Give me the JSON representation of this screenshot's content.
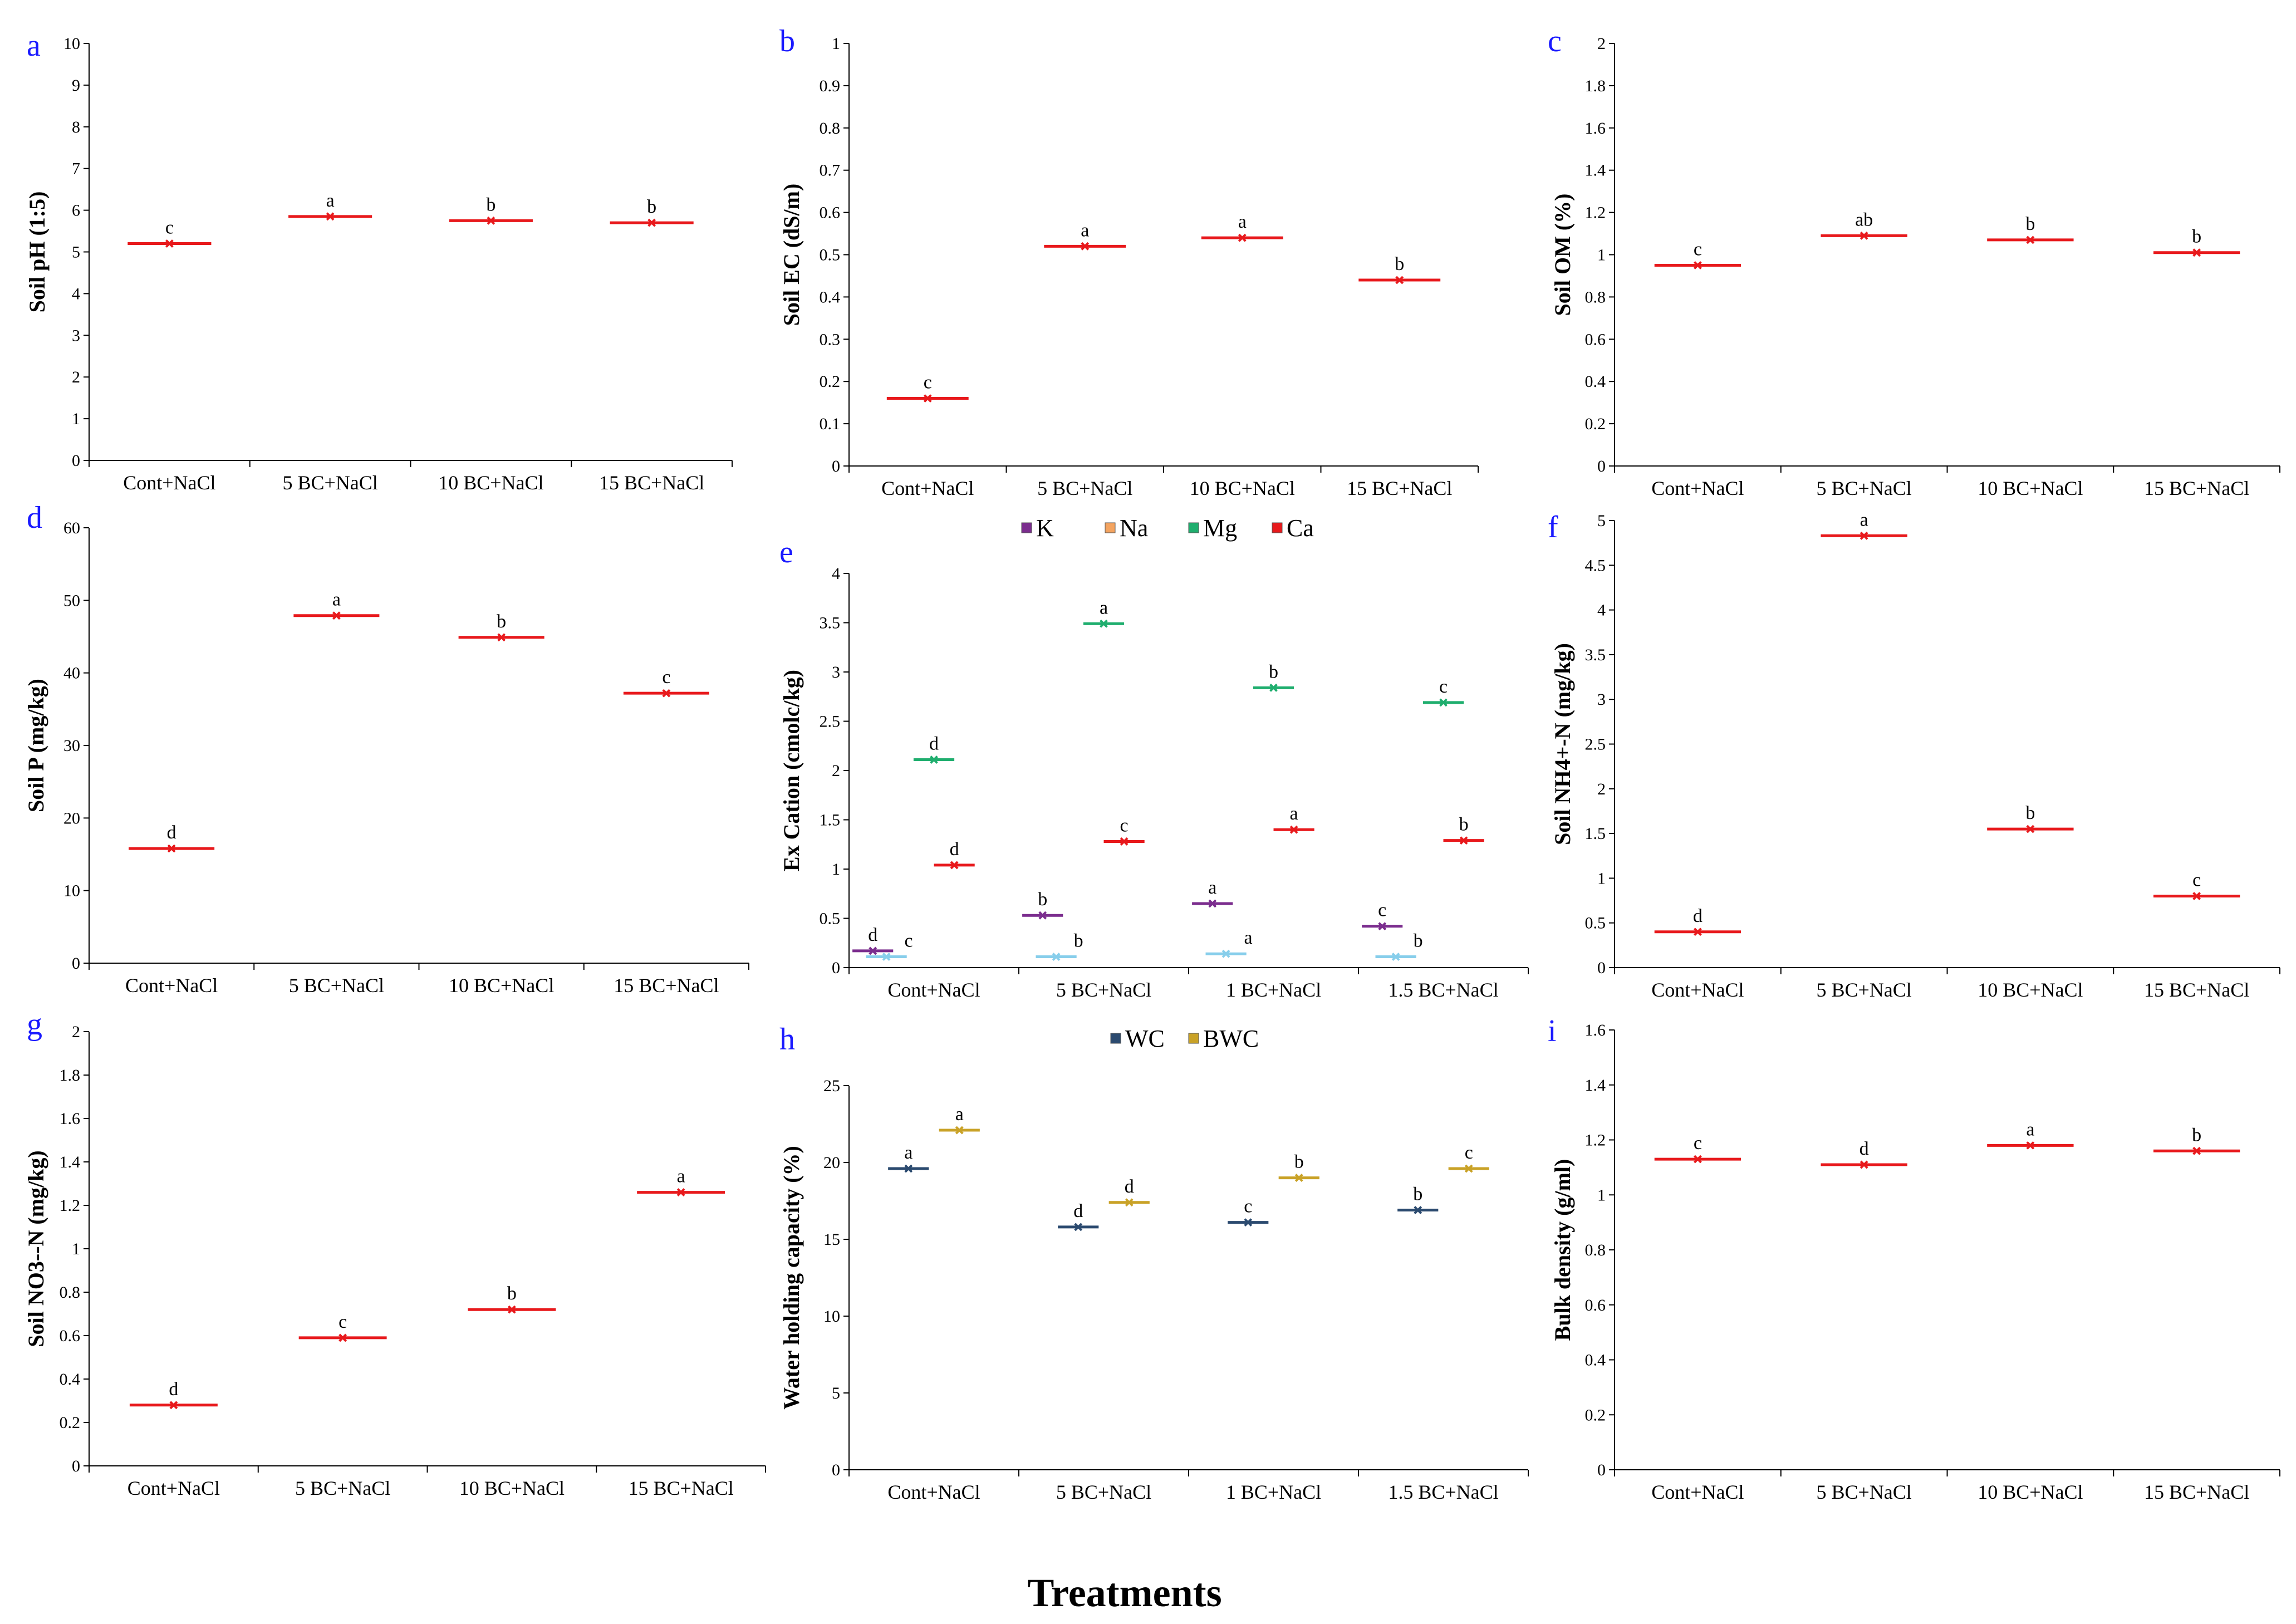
{
  "footer": {
    "xlabel": "Treatments"
  },
  "chart_data": [
    {
      "panel": "a",
      "type": "scatter",
      "ylabel": "Soil pH (1:5)",
      "ylim": [
        0,
        10
      ],
      "yticks": [
        0,
        1,
        2,
        3,
        4,
        5,
        6,
        7,
        8,
        9,
        10
      ],
      "categories": [
        "Cont+NaCl",
        "5 BC+NaCl",
        "10 BC+NaCl",
        "15 BC+NaCl"
      ],
      "series": [
        {
          "color": "#e8191c",
          "values": [
            5.2,
            5.85,
            5.75,
            5.7
          ],
          "labels": [
            "c",
            "a",
            "b",
            "b"
          ]
        }
      ]
    },
    {
      "panel": "b",
      "type": "scatter",
      "ylabel": "Soil EC (dS/m)",
      "ylim": [
        0,
        1
      ],
      "yticks": [
        0,
        0.1,
        0.2,
        0.3,
        0.4,
        0.5,
        0.6,
        0.7,
        0.8,
        0.9,
        1
      ],
      "categories": [
        "Cont+NaCl",
        "5 BC+NaCl",
        "10 BC+NaCl",
        "15 BC+NaCl"
      ],
      "series": [
        {
          "color": "#e8191c",
          "values": [
            0.16,
            0.52,
            0.54,
            0.44
          ],
          "labels": [
            "c",
            "a",
            "a",
            "b"
          ]
        }
      ]
    },
    {
      "panel": "c",
      "type": "scatter",
      "ylabel": "Soil OM (%)",
      "ylim": [
        0,
        2
      ],
      "yticks": [
        0,
        0.2,
        0.4,
        0.6,
        0.8,
        1,
        1.2,
        1.4,
        1.6,
        1.8,
        2
      ],
      "categories": [
        "Cont+NaCl",
        "5 BC+NaCl",
        "10 BC+NaCl",
        "15 BC+NaCl"
      ],
      "series": [
        {
          "color": "#e8191c",
          "values": [
            0.95,
            1.09,
            1.07,
            1.01
          ],
          "labels": [
            "c",
            "ab",
            "b",
            "b"
          ]
        }
      ]
    },
    {
      "panel": "d",
      "type": "scatter",
      "ylabel": "Soil P (mg/kg)",
      "ylim": [
        0,
        60
      ],
      "yticks": [
        0,
        10,
        20,
        30,
        40,
        50,
        60
      ],
      "categories": [
        "Cont+NaCl",
        "5 BC+NaCl",
        "10 BC+NaCl",
        "15 BC+NaCl"
      ],
      "series": [
        {
          "color": "#e8191c",
          "values": [
            15.8,
            47.9,
            44.9,
            37.2
          ],
          "labels": [
            "d",
            "a",
            "b",
            "c"
          ]
        }
      ]
    },
    {
      "panel": "e",
      "type": "scatter",
      "ylabel": "Ex Cation (cmolc/kg)",
      "ylim": [
        0,
        4
      ],
      "yticks": [
        0,
        0.5,
        1,
        1.5,
        2,
        2.5,
        3,
        3.5,
        4
      ],
      "categories": [
        "Cont+NaCl",
        "5 BC+NaCl",
        "1 BC+NaCl",
        "1.5 BC+NaCl"
      ],
      "legend": {
        "position": "top"
      },
      "series": [
        {
          "name": "K",
          "color": "#7b2d8e",
          "values": [
            0.17,
            0.53,
            0.65,
            0.42
          ],
          "labels": [
            "d",
            "b",
            "a",
            "c"
          ]
        },
        {
          "name": "Na",
          "color": "#f4a460",
          "legend_only": true
        },
        {
          "name": "Mg",
          "color": "#1fae6e",
          "values": [
            2.11,
            3.49,
            2.84,
            2.69
          ],
          "labels": [
            "d",
            "a",
            "b",
            "c"
          ]
        },
        {
          "name": "Ca",
          "color": "#e8191c",
          "values": [
            1.04,
            1.28,
            1.4,
            1.29
          ],
          "labels": [
            "d",
            "c",
            "a",
            "b"
          ]
        },
        {
          "color": "#87ceeb",
          "values": [
            0.11,
            0.11,
            0.14,
            0.11
          ],
          "labels": [
            "c",
            "b",
            "a",
            "b"
          ]
        }
      ]
    },
    {
      "panel": "f",
      "type": "scatter",
      "ylabel": "Soil NH4+-N (mg/kg)",
      "ylim": [
        0,
        5
      ],
      "yticks": [
        0,
        0.5,
        1,
        1.5,
        2,
        2.5,
        3,
        3.5,
        4,
        4.5,
        5
      ],
      "categories": [
        "Cont+NaCl",
        "5 BC+NaCl",
        "10 BC+NaCl",
        "15 BC+NaCl"
      ],
      "series": [
        {
          "color": "#e8191c",
          "values": [
            0.4,
            4.83,
            1.55,
            0.8
          ],
          "labels": [
            "d",
            "a",
            "b",
            "c"
          ]
        }
      ]
    },
    {
      "panel": "g",
      "type": "scatter",
      "ylabel": "Soil NO3--N (mg/kg)",
      "ylim": [
        0,
        2
      ],
      "yticks": [
        0,
        0.2,
        0.4,
        0.6,
        0.8,
        1,
        1.2,
        1.4,
        1.6,
        1.8,
        2
      ],
      "categories": [
        "Cont+NaCl",
        "5 BC+NaCl",
        "10 BC+NaCl",
        "15 BC+NaCl"
      ],
      "series": [
        {
          "color": "#e8191c",
          "values": [
            0.28,
            0.59,
            0.72,
            1.26
          ],
          "labels": [
            "d",
            "c",
            "b",
            "a"
          ]
        }
      ]
    },
    {
      "panel": "h",
      "type": "scatter",
      "ylabel": "Water holding capacity (%)",
      "ylim": [
        0,
        25
      ],
      "yticks": [
        0,
        5,
        10,
        15,
        20,
        25
      ],
      "categories": [
        "Cont+NaCl",
        "5 BC+NaCl",
        "1 BC+NaCl",
        "1.5 BC+NaCl"
      ],
      "legend": {
        "position": "top"
      },
      "series": [
        {
          "name": "WC",
          "color": "#2b4a6f",
          "values": [
            19.6,
            15.8,
            16.1,
            16.9
          ],
          "labels": [
            "a",
            "d",
            "c",
            "b"
          ]
        },
        {
          "name": "BWC",
          "color": "#c9a227",
          "values": [
            22.1,
            17.4,
            19.0,
            19.6
          ],
          "labels": [
            "a",
            "d",
            "b",
            "c"
          ]
        }
      ]
    },
    {
      "panel": "i",
      "type": "scatter",
      "ylabel": "Bulk density (g/ml)",
      "ylim": [
        0,
        1.6
      ],
      "yticks": [
        0,
        0.2,
        0.4,
        0.6,
        0.8,
        1,
        1.2,
        1.4,
        1.6
      ],
      "categories": [
        "Cont+NaCl",
        "5 BC+NaCl",
        "10 BC+NaCl",
        "15 BC+NaCl"
      ],
      "series": [
        {
          "color": "#e8191c",
          "values": [
            1.13,
            1.11,
            1.18,
            1.16
          ],
          "labels": [
            "c",
            "d",
            "a",
            "b"
          ]
        }
      ]
    }
  ]
}
